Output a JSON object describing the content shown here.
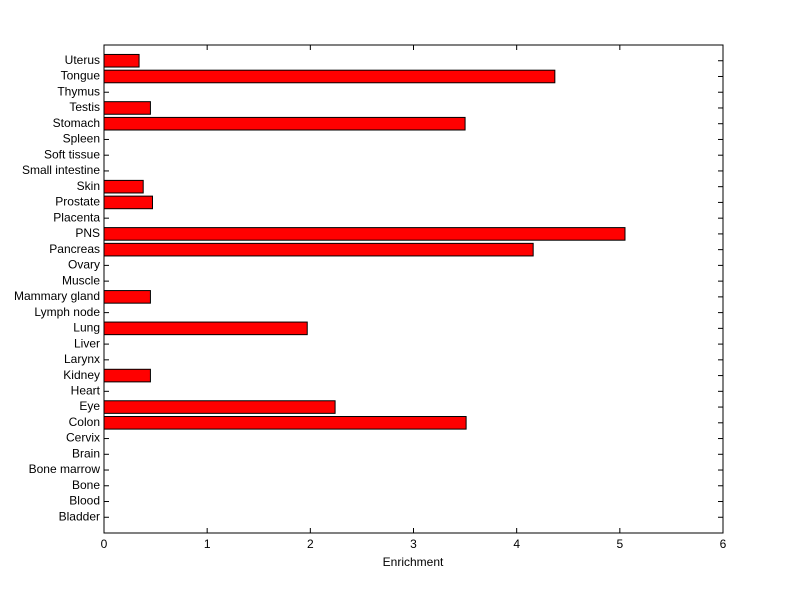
{
  "chart_data": {
    "type": "barh",
    "xlabel": "Enrichment",
    "categories": [
      "Bladder",
      "Blood",
      "Bone",
      "Bone marrow",
      "Brain",
      "Cervix",
      "Colon",
      "Eye",
      "Heart",
      "Kidney",
      "Larynx",
      "Liver",
      "Lung",
      "Lymph node",
      "Mammary gland",
      "Muscle",
      "Ovary",
      "Pancreas",
      "PNS",
      "Placenta",
      "Prostate",
      "Skin",
      "Small intestine",
      "Soft tissue",
      "Spleen",
      "Stomach",
      "Testis",
      "Thymus",
      "Tongue",
      "Uterus"
    ],
    "values": [
      0,
      0,
      0,
      0,
      0,
      0,
      3.51,
      2.24,
      0,
      0.45,
      0,
      0,
      1.97,
      0,
      0.45,
      0,
      0,
      4.16,
      5.05,
      0,
      0.47,
      0.38,
      0,
      0,
      0,
      3.5,
      0.45,
      0,
      4.37,
      0.34
    ],
    "color": "#ff0000",
    "xlim": [
      0,
      6
    ],
    "xticks": [
      0,
      1,
      2,
      3,
      4,
      5,
      6
    ]
  }
}
